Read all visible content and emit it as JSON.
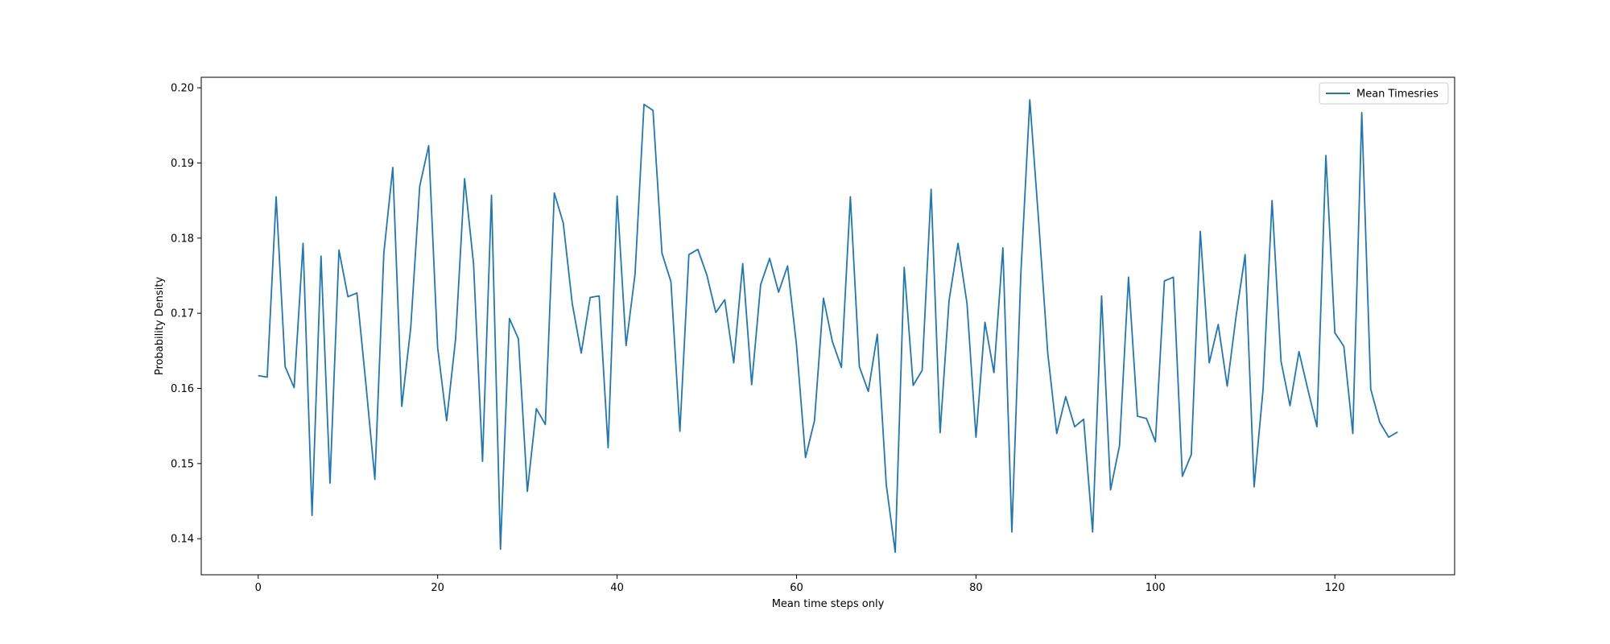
{
  "chart_data": {
    "type": "line",
    "title": "",
    "xlabel": "Mean time steps only",
    "ylabel": "Probability Density",
    "xlim": [
      -6.35,
      133.35
    ],
    "ylim": [
      0.1352,
      0.2014
    ],
    "xticks": [
      0,
      20,
      40,
      60,
      80,
      100,
      120
    ],
    "yticks": [
      0.14,
      0.15,
      0.16,
      0.17,
      0.18,
      0.19,
      0.2
    ],
    "xtick_labels": [
      "0",
      "20",
      "40",
      "60",
      "80",
      "100",
      "120"
    ],
    "ytick_labels": [
      "0.14",
      "0.15",
      "0.16",
      "0.17",
      "0.18",
      "0.19",
      "0.20"
    ],
    "grid": false,
    "legend_position": "top-right",
    "series": [
      {
        "name": "Mean Timesries",
        "color": "#1f77b4",
        "x": [
          0,
          1,
          2,
          3,
          4,
          5,
          6,
          7,
          8,
          9,
          10,
          11,
          12,
          13,
          14,
          15,
          16,
          17,
          18,
          19,
          20,
          21,
          22,
          23,
          24,
          25,
          26,
          27,
          28,
          29,
          30,
          31,
          32,
          33,
          34,
          35,
          36,
          37,
          38,
          39,
          40,
          41,
          42,
          43,
          44,
          45,
          46,
          47,
          48,
          49,
          50,
          51,
          52,
          53,
          54,
          55,
          56,
          57,
          58,
          59,
          60,
          61,
          62,
          63,
          64,
          65,
          66,
          67,
          68,
          69,
          70,
          71,
          72,
          73,
          74,
          75,
          76,
          77,
          78,
          79,
          80,
          81,
          82,
          83,
          84,
          85,
          86,
          87,
          88,
          89,
          90,
          91,
          92,
          93,
          94,
          95,
          96,
          97,
          98,
          99,
          100,
          101,
          102,
          103,
          104,
          105,
          106,
          107,
          108,
          109,
          110,
          111,
          112,
          113,
          114,
          115,
          116,
          117,
          118,
          119,
          120,
          121,
          122,
          123,
          124,
          125,
          126,
          127
        ],
        "y": [
          0.1617,
          0.1615,
          0.1855,
          0.1629,
          0.1601,
          0.1793,
          0.1431,
          0.1776,
          0.1474,
          0.1784,
          0.1722,
          0.1727,
          0.1606,
          0.1479,
          0.178,
          0.1894,
          0.1576,
          0.1681,
          0.1869,
          0.1923,
          0.1654,
          0.1557,
          0.1666,
          0.1879,
          0.1766,
          0.1503,
          0.1857,
          0.1386,
          0.1693,
          0.1666,
          0.1463,
          0.1573,
          0.1552,
          0.186,
          0.182,
          0.1713,
          0.1647,
          0.1721,
          0.1723,
          0.1521,
          0.1856,
          0.1657,
          0.1752,
          0.1978,
          0.197,
          0.178,
          0.1742,
          0.1543,
          0.1778,
          0.1785,
          0.1751,
          0.1701,
          0.1718,
          0.1634,
          0.1766,
          0.1605,
          0.1738,
          0.1773,
          0.1728,
          0.1763,
          0.1657,
          0.1508,
          0.1557,
          0.172,
          0.1662,
          0.1628,
          0.1855,
          0.1629,
          0.1596,
          0.1672,
          0.1472,
          0.1382,
          0.1761,
          0.1604,
          0.1624,
          0.1865,
          0.1541,
          0.1717,
          0.1793,
          0.1713,
          0.1535,
          0.1688,
          0.1621,
          0.1787,
          0.1409,
          0.1752,
          0.1984,
          0.182,
          0.1647,
          0.154,
          0.1589,
          0.1549,
          0.1559,
          0.1409,
          0.1723,
          0.1465,
          0.1524,
          0.1748,
          0.1563,
          0.156,
          0.1529,
          0.1743,
          0.1748,
          0.1483,
          0.1512,
          0.1809,
          0.1634,
          0.1685,
          0.1603,
          0.1697,
          0.1778,
          0.1469,
          0.1599,
          0.185,
          0.1636,
          0.1577,
          0.1649,
          0.1598,
          0.1549,
          0.191,
          0.1674,
          0.1656,
          0.154,
          0.1967,
          0.1599,
          0.1555,
          0.1535,
          0.1542
        ]
      }
    ]
  }
}
